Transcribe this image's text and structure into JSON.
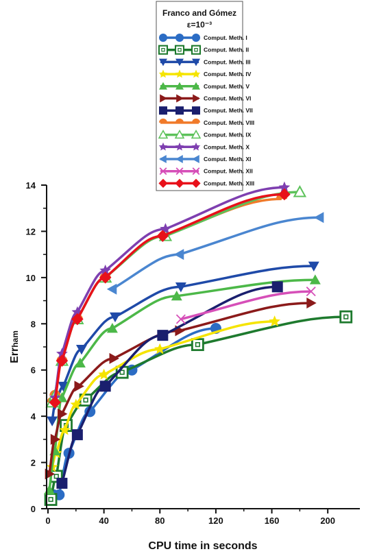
{
  "chart_data": {
    "type": "line",
    "title": "Franco and Gómez",
    "subtitle": "ε=10⁻³",
    "xlabel": "CPU time in seconds",
    "ylabel": "Errham",
    "ylabel_main": "Err",
    "ylabel_sub": "ham",
    "xlim": [
      0,
      220
    ],
    "ylim": [
      0,
      14
    ],
    "xticks": [
      0,
      40,
      80,
      120,
      160,
      200
    ],
    "yticks": [
      0,
      2,
      4,
      6,
      8,
      10,
      12,
      14
    ],
    "grid": false,
    "legend_position": "top",
    "series": [
      {
        "name": "Comput. Meth. I",
        "color": "#2b6cc4",
        "marker": "circle",
        "x": [
          4,
          8,
          15,
          30,
          60,
          120
        ],
        "y": [
          0.6,
          0.6,
          2.4,
          4.2,
          6.0,
          7.8
        ]
      },
      {
        "name": "Comput. Meth. II",
        "color": "#1e7a2e",
        "marker": "square-open",
        "x": [
          2,
          6,
          13,
          27,
          53,
          107,
          213
        ],
        "y": [
          0.4,
          1.4,
          3.6,
          4.7,
          5.9,
          7.1,
          8.3
        ]
      },
      {
        "name": "Comput. Meth. III",
        "color": "#1f4aa8",
        "marker": "triangle-down",
        "x": [
          3,
          5,
          11,
          24,
          48,
          95,
          190
        ],
        "y": [
          3.8,
          4.5,
          5.3,
          6.9,
          8.3,
          9.6,
          10.5
        ]
      },
      {
        "name": "Comput. Meth. IV",
        "color": "#f5e400",
        "marker": "star",
        "x": [
          3,
          6,
          12,
          20,
          40,
          80,
          162
        ],
        "y": [
          1.8,
          2.4,
          3.4,
          4.5,
          5.8,
          6.9,
          8.1
        ]
      },
      {
        "name": "Comput. Meth. V",
        "color": "#4cb848",
        "marker": "triangle-up",
        "x": [
          1,
          5,
          10,
          23,
          46,
          92,
          191
        ],
        "y": [
          0.8,
          2.5,
          4.8,
          6.3,
          7.8,
          9.2,
          9.9
        ]
      },
      {
        "name": "Comput. Meth. VI",
        "color": "#8b1a1a",
        "marker": "triangle-right",
        "x": [
          1,
          5,
          10,
          22,
          47,
          94,
          188
        ],
        "y": [
          1.5,
          3.0,
          4.1,
          5.3,
          6.5,
          7.7,
          8.9
        ]
      },
      {
        "name": "Comput. Meth. VII",
        "color": "#1a1f6e",
        "marker": "square",
        "x": [
          10,
          21,
          41,
          82,
          164
        ],
        "y": [
          1.1,
          3.2,
          5.3,
          7.5,
          9.6
        ]
      },
      {
        "name": "Comput. Meth. VIII",
        "color": "#f07a2a",
        "marker": "half-circle",
        "x": [
          3,
          5,
          10,
          21,
          41,
          83,
          167
        ],
        "y": [
          4.6,
          4.9,
          6.4,
          8.2,
          10.0,
          11.8,
          13.4
        ]
      },
      {
        "name": "Comput. Meth. IX",
        "color": "#5cc25a",
        "marker": "triangle-up-open",
        "x": [
          3,
          5,
          10,
          21,
          41,
          84,
          180
        ],
        "y": [
          4.6,
          4.9,
          6.4,
          8.2,
          10.0,
          11.8,
          13.7
        ]
      },
      {
        "name": "Comput. Meth. X",
        "color": "#7e3fb0",
        "marker": "star",
        "x": [
          5,
          10,
          21,
          41,
          84,
          169
        ],
        "y": [
          4.8,
          6.7,
          8.5,
          10.3,
          12.1,
          13.9
        ]
      },
      {
        "name": "Comput. Meth. XI",
        "color": "#4a86d0",
        "marker": "triangle-left",
        "x": [
          46,
          94,
          194
        ],
        "y": [
          9.5,
          11.0,
          12.6
        ]
      },
      {
        "name": "Comput. Meth. XII",
        "color": "#d64fb8",
        "marker": "x",
        "x": [
          95,
          188
        ],
        "y": [
          8.2,
          9.4
        ]
      },
      {
        "name": "Comput. Meth. XIII",
        "color": "#e8111a",
        "marker": "diamond",
        "x": [
          5,
          10,
          21,
          41,
          82,
          169
        ],
        "y": [
          4.6,
          6.4,
          8.2,
          10.0,
          11.8,
          13.6
        ]
      }
    ]
  }
}
